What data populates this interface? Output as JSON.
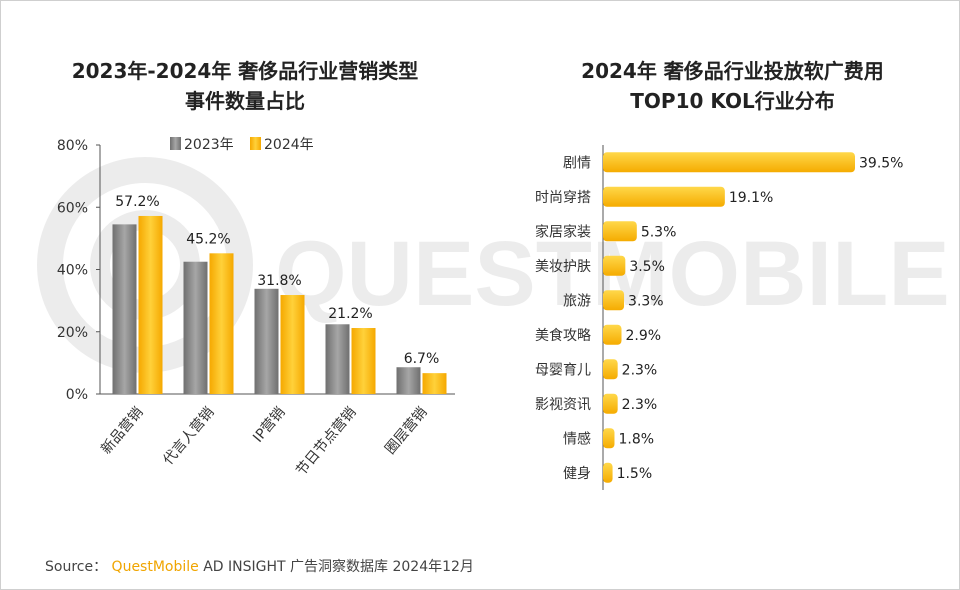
{
  "watermark": "QUESTMOBILE",
  "charts": {
    "left": {
      "title_line1": "2023年-2024年 奢侈品行业营销类型",
      "title_line2": "事件数量占比"
    },
    "right": {
      "title_line1": "2024年 奢侈品行业投放软广费用",
      "title_line2": "TOP10 KOL行业分布"
    }
  },
  "source": {
    "label": "Source：",
    "brand": "QuestMobile",
    "rest": "AD INSIGHT 广告洞察数据库 2024年12月"
  },
  "colors": {
    "gray_series": "#8c8c8c",
    "yellow_series": "#ffc21a",
    "axis": "#555555"
  },
  "chart_data": [
    {
      "type": "bar",
      "title": "2023年-2024年 奢侈品行业营销类型事件数量占比",
      "categories": [
        "新品营销",
        "代言人营销",
        "IP营销",
        "节日节点营销",
        "圈层营销"
      ],
      "series": [
        {
          "name": "2023年",
          "values": [
            54.5,
            42.5,
            33.8,
            22.4,
            8.6
          ]
        },
        {
          "name": "2024年",
          "values": [
            57.2,
            45.2,
            31.8,
            21.2,
            6.7
          ]
        }
      ],
      "data_labels": [
        "57.2%",
        "45.2%",
        "31.8%",
        "21.2%",
        "6.7%"
      ],
      "ylim": [
        0,
        80
      ],
      "yticks": [
        "0%",
        "20%",
        "40%",
        "60%",
        "80%"
      ],
      "legend": "top"
    },
    {
      "type": "bar",
      "orientation": "horizontal",
      "title": "2024年 奢侈品行业投放软广费用TOP10 KOL行业分布",
      "categories": [
        "剧情",
        "时尚穿搭",
        "家居家装",
        "美妆护肤",
        "旅游",
        "美食攻略",
        "母婴育儿",
        "影视资讯",
        "情感",
        "健身"
      ],
      "values": [
        39.5,
        19.1,
        5.3,
        3.5,
        3.3,
        2.9,
        2.3,
        2.3,
        1.8,
        1.5
      ],
      "data_labels": [
        "39.5%",
        "19.1%",
        "5.3%",
        "3.5%",
        "3.3%",
        "2.9%",
        "2.3%",
        "2.3%",
        "1.8%",
        "1.5%"
      ]
    }
  ]
}
